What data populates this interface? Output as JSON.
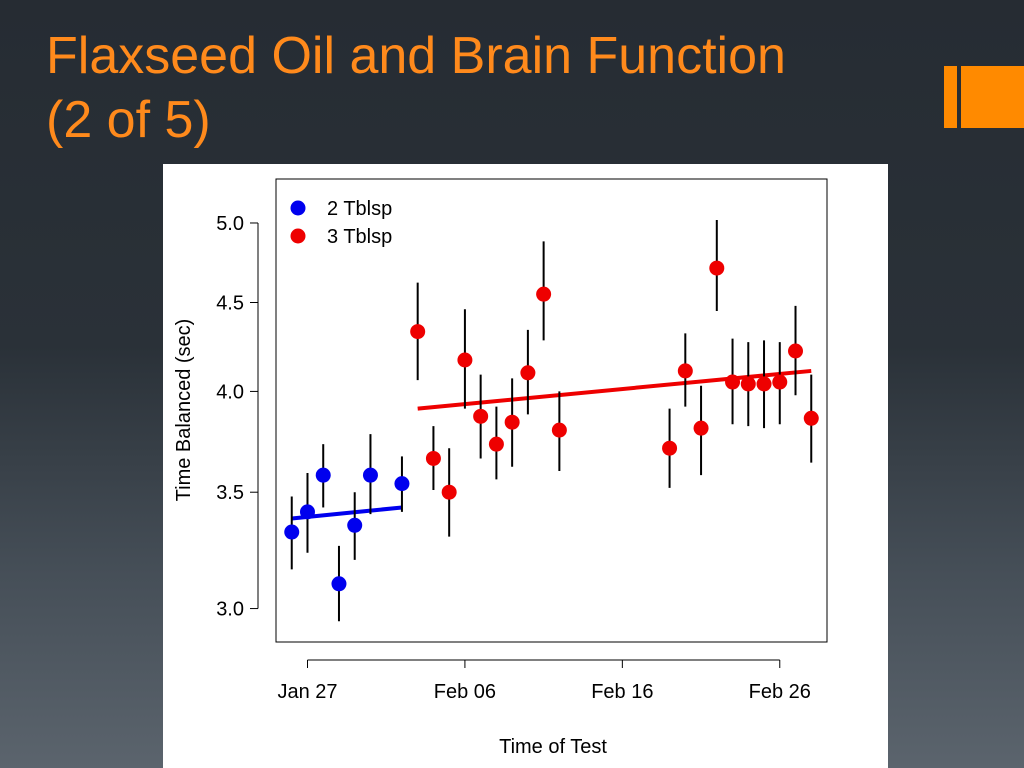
{
  "slide": {
    "title_line1": "Flaxseed Oil and Brain Function",
    "title_line2": "(2 of 5)"
  },
  "accent_color": "#ff8a00",
  "chart_data": {
    "type": "scatter",
    "title": "",
    "xlabel": "Time of Test",
    "ylabel": "Time Balanced (sec)",
    "x_type": "date",
    "x_ticks": [
      {
        "date": "2013-01-27",
        "label": "Jan 27"
      },
      {
        "date": "2013-02-06",
        "label": "Feb 06"
      },
      {
        "date": "2013-02-16",
        "label": "Feb 16"
      },
      {
        "date": "2013-02-26",
        "label": "Feb 26"
      }
    ],
    "xlim": [
      "2013-01-25",
      "2013-03-01"
    ],
    "y_scale": "log",
    "y_ticks": [
      3.0,
      3.5,
      4.0,
      4.5,
      5.0
    ],
    "y_tick_labels": [
      "3.0",
      "3.5",
      "4.0",
      "4.5",
      "5.0"
    ],
    "ylim": [
      2.87,
      5.3
    ],
    "grid": false,
    "legend_position": "top-left",
    "series": [
      {
        "name": "2 Tblsp",
        "color": "#0000ee",
        "points": [
          {
            "x": "2013-01-26",
            "y": 3.32,
            "lo": 3.16,
            "hi": 3.48
          },
          {
            "x": "2013-01-27",
            "y": 3.41,
            "lo": 3.23,
            "hi": 3.59
          },
          {
            "x": "2013-01-28",
            "y": 3.58,
            "lo": 3.43,
            "hi": 3.73
          },
          {
            "x": "2013-01-29",
            "y": 3.1,
            "lo": 2.95,
            "hi": 3.26
          },
          {
            "x": "2013-01-30",
            "y": 3.35,
            "lo": 3.2,
            "hi": 3.5
          },
          {
            "x": "2013-01-31",
            "y": 3.58,
            "lo": 3.4,
            "hi": 3.78
          },
          {
            "x": "2013-02-02",
            "y": 3.54,
            "lo": 3.41,
            "hi": 3.67
          }
        ],
        "trend": [
          {
            "x": "2013-01-26",
            "y": 3.38
          },
          {
            "x": "2013-02-02",
            "y": 3.43
          }
        ]
      },
      {
        "name": "3 Tblsp",
        "color": "#ee0000",
        "points": [
          {
            "x": "2013-02-03",
            "y": 4.33,
            "lo": 4.06,
            "hi": 4.62
          },
          {
            "x": "2013-02-04",
            "y": 3.66,
            "lo": 3.51,
            "hi": 3.82
          },
          {
            "x": "2013-02-05",
            "y": 3.5,
            "lo": 3.3,
            "hi": 3.71
          },
          {
            "x": "2013-02-06",
            "y": 4.17,
            "lo": 3.91,
            "hi": 4.46
          },
          {
            "x": "2013-02-07",
            "y": 3.87,
            "lo": 3.66,
            "hi": 4.09
          },
          {
            "x": "2013-02-08",
            "y": 3.73,
            "lo": 3.56,
            "hi": 3.92
          },
          {
            "x": "2013-02-09",
            "y": 3.84,
            "lo": 3.62,
            "hi": 4.07
          },
          {
            "x": "2013-02-10",
            "y": 4.1,
            "lo": 3.88,
            "hi": 4.34
          },
          {
            "x": "2013-02-11",
            "y": 4.55,
            "lo": 4.28,
            "hi": 4.88
          },
          {
            "x": "2013-02-12",
            "y": 3.8,
            "lo": 3.6,
            "hi": 4.0
          },
          {
            "x": "2013-02-19",
            "y": 3.71,
            "lo": 3.52,
            "hi": 3.91
          },
          {
            "x": "2013-02-20",
            "y": 4.11,
            "lo": 3.92,
            "hi": 4.32
          },
          {
            "x": "2013-02-21",
            "y": 3.81,
            "lo": 3.58,
            "hi": 4.03
          },
          {
            "x": "2013-02-22",
            "y": 4.71,
            "lo": 4.45,
            "hi": 5.02
          },
          {
            "x": "2013-02-23",
            "y": 4.05,
            "lo": 3.83,
            "hi": 4.29
          },
          {
            "x": "2013-02-24",
            "y": 4.04,
            "lo": 3.82,
            "hi": 4.27
          },
          {
            "x": "2013-02-25",
            "y": 4.04,
            "lo": 3.81,
            "hi": 4.28
          },
          {
            "x": "2013-02-26",
            "y": 4.05,
            "lo": 3.83,
            "hi": 4.27
          },
          {
            "x": "2013-02-27",
            "y": 4.22,
            "lo": 3.98,
            "hi": 4.48
          },
          {
            "x": "2013-02-28",
            "y": 3.86,
            "lo": 3.64,
            "hi": 4.09
          }
        ],
        "trend": [
          {
            "x": "2013-02-03",
            "y": 3.91
          },
          {
            "x": "2013-02-28",
            "y": 4.11
          }
        ]
      }
    ]
  }
}
